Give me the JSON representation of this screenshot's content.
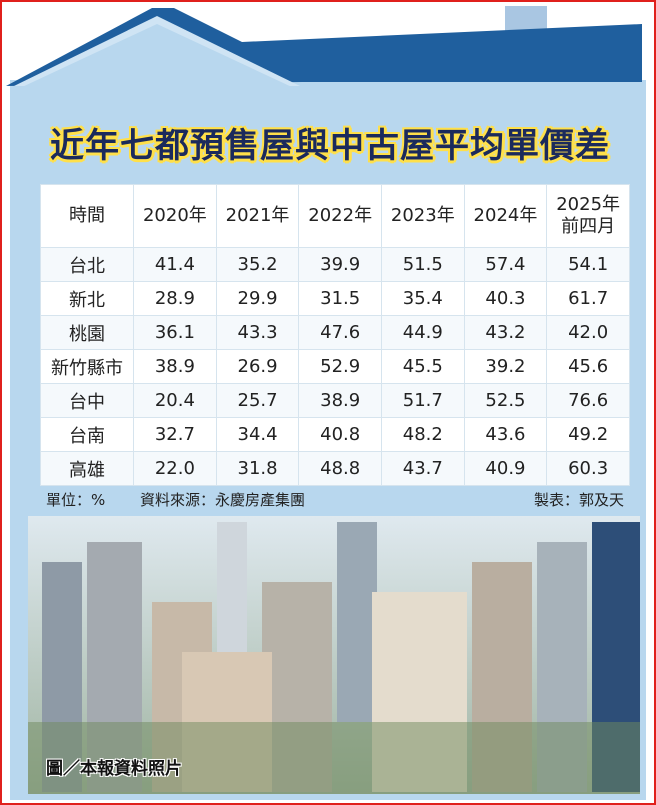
{
  "title": "近年七都預售屋與中古屋平均單價差",
  "table": {
    "header": [
      "時間",
      "2020年",
      "2021年",
      "2022年",
      "2023年",
      "2024年",
      "2025年\n前四月"
    ],
    "rows": [
      [
        "台北",
        "41.4",
        "35.2",
        "39.9",
        "51.5",
        "57.4",
        "54.1"
      ],
      [
        "新北",
        "28.9",
        "29.9",
        "31.5",
        "35.4",
        "40.3",
        "61.7"
      ],
      [
        "桃園",
        "36.1",
        "43.3",
        "47.6",
        "44.9",
        "43.2",
        "42.0"
      ],
      [
        "新竹縣市",
        "38.9",
        "26.9",
        "52.9",
        "45.5",
        "39.2",
        "45.6"
      ],
      [
        "台中",
        "20.4",
        "25.7",
        "38.9",
        "51.7",
        "52.5",
        "76.6"
      ],
      [
        "台南",
        "32.7",
        "34.4",
        "40.8",
        "48.2",
        "43.6",
        "49.2"
      ],
      [
        "高雄",
        "22.0",
        "31.8",
        "48.8",
        "43.7",
        "40.9",
        "60.3"
      ]
    ]
  },
  "footer": {
    "unit": "單位：%",
    "source": "資料來源：永慶房產集團",
    "credit": "製表：郭及天"
  },
  "photo_caption": "圖／本報資料照片"
}
